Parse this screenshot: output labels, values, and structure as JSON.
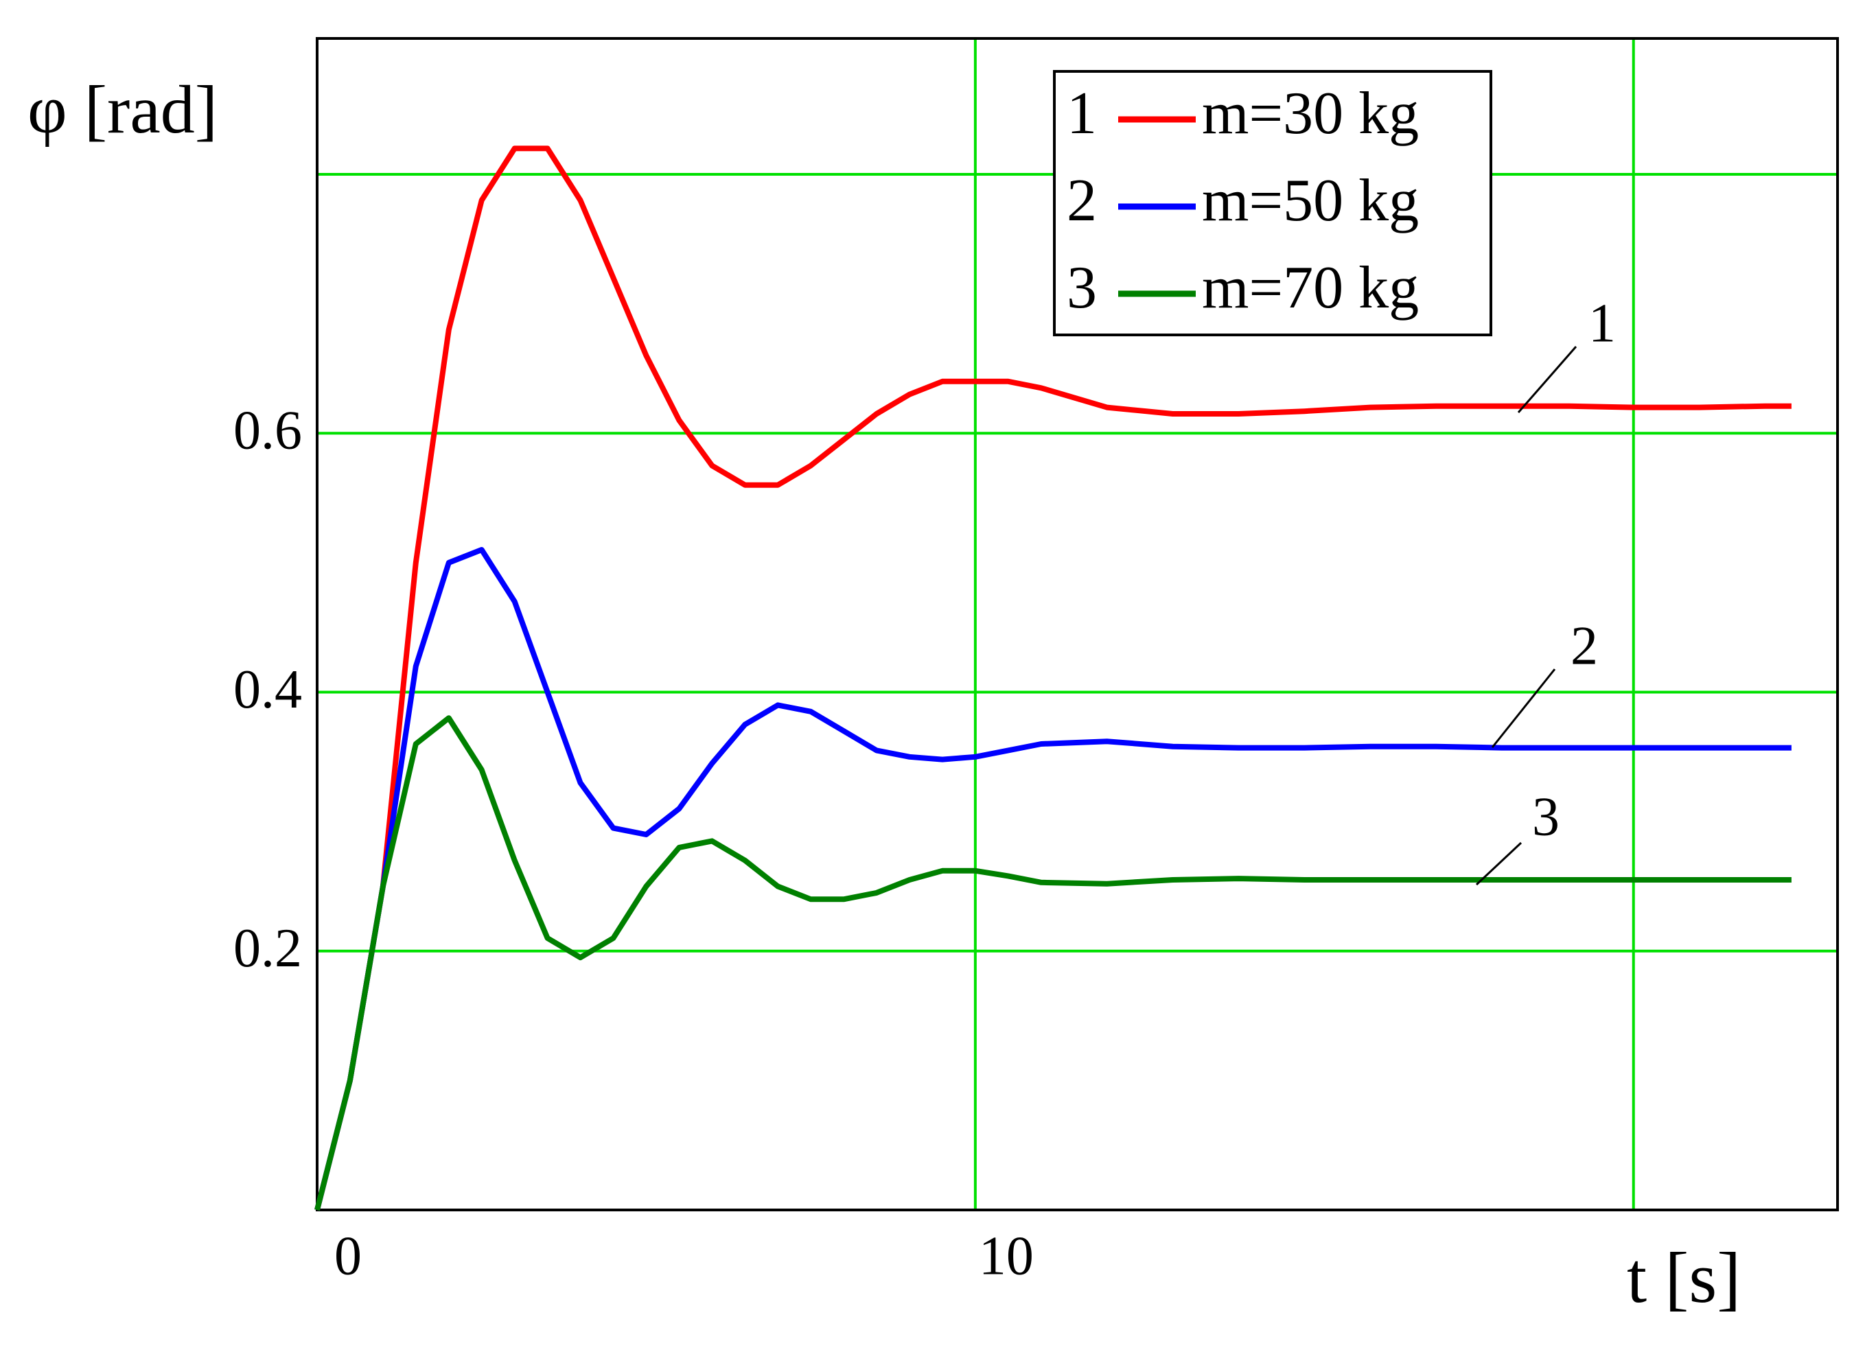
{
  "chart_data": {
    "type": "line",
    "ylabel": "φ [rad]",
    "xlabel": "t [s]",
    "x": [
      0,
      0.5,
      1,
      1.5,
      2,
      2.5,
      3,
      3.5,
      4,
      4.5,
      5,
      5.5,
      6,
      6.5,
      7,
      7.5,
      8,
      8.5,
      9,
      9.5,
      10,
      10.5,
      11,
      12,
      13,
      14,
      15,
      16,
      17,
      18,
      19,
      20,
      21,
      22,
      22.4
    ],
    "series": [
      {
        "label": "1",
        "name": "m=30 kg",
        "color": "#ff0000",
        "values": [
          0,
          0.1,
          0.25,
          0.5,
          0.68,
          0.78,
          0.82,
          0.82,
          0.78,
          0.72,
          0.66,
          0.61,
          0.575,
          0.56,
          0.56,
          0.575,
          0.595,
          0.615,
          0.63,
          0.64,
          0.64,
          0.64,
          0.635,
          0.62,
          0.615,
          0.615,
          0.617,
          0.62,
          0.621,
          0.621,
          0.621,
          0.62,
          0.62,
          0.621,
          0.621
        ]
      },
      {
        "label": "2",
        "name": "m=50 kg",
        "color": "#0000ff",
        "values": [
          0,
          0.1,
          0.25,
          0.42,
          0.5,
          0.51,
          0.47,
          0.4,
          0.33,
          0.295,
          0.29,
          0.31,
          0.345,
          0.375,
          0.39,
          0.385,
          0.37,
          0.355,
          0.35,
          0.348,
          0.35,
          0.355,
          0.36,
          0.362,
          0.358,
          0.357,
          0.357,
          0.358,
          0.358,
          0.357,
          0.357,
          0.357,
          0.357,
          0.357,
          0.357
        ]
      },
      {
        "label": "3",
        "name": "m=70 kg",
        "color": "#008000",
        "values": [
          0,
          0.1,
          0.25,
          0.36,
          0.38,
          0.34,
          0.27,
          0.21,
          0.195,
          0.21,
          0.25,
          0.28,
          0.285,
          0.27,
          0.25,
          0.24,
          0.24,
          0.245,
          0.255,
          0.262,
          0.262,
          0.258,
          0.253,
          0.252,
          0.255,
          0.256,
          0.255,
          0.255,
          0.255,
          0.255,
          0.255,
          0.255,
          0.255,
          0.255,
          0.255
        ]
      }
    ],
    "xlim": [
      0,
      23.1
    ],
    "ylim": [
      0,
      0.905
    ],
    "xticks": [
      0,
      10
    ],
    "yticks": [
      0.2,
      0.4,
      0.6
    ],
    "xgrid": [
      10,
      20
    ],
    "ygrid": [
      0.2,
      0.4,
      0.6,
      0.8
    ],
    "grid_color": "#00e000"
  }
}
